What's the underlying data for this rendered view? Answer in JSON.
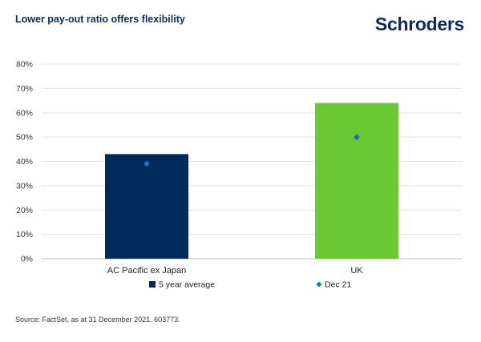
{
  "header": {
    "title": "Lower pay-out ratio offers flexibility",
    "brand": "Schroders"
  },
  "colors": {
    "bar_1": "#002a5c",
    "bar_2": "#6ac832",
    "marker": "#1f6fc0",
    "brand": "#0c2a5c"
  },
  "chart_data": {
    "type": "bar",
    "categories": [
      "AC Pacific ex Japan",
      "UK"
    ],
    "series": [
      {
        "name": "5 year average",
        "values": [
          43,
          64
        ],
        "kind": "bar"
      },
      {
        "name": "Dec 21",
        "values": [
          39,
          50
        ],
        "kind": "marker"
      }
    ],
    "yticks": [
      "0%",
      "10%",
      "20%",
      "30%",
      "40%",
      "50%",
      "60%",
      "70%",
      "80%"
    ],
    "ylim": [
      0,
      80
    ],
    "grid": true,
    "legend_position": "bottom"
  },
  "footer": {
    "source": "Source: FactSet, as at 31 December 2021. 603773."
  }
}
